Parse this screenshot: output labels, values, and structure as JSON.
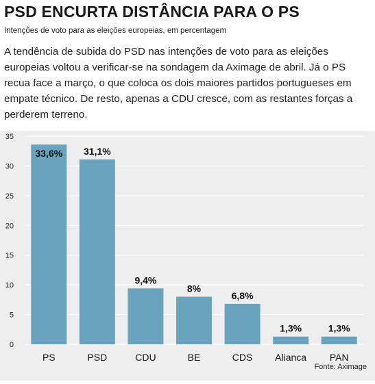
{
  "header": {
    "title": "PSD ENCURTA DISTÂNCIA PARA O PS",
    "subtitle": "Intenções de voto para as eleições europeias, em percentagem"
  },
  "intro_text": "A tendência de subida do PSD nas intenções de voto para as eleições europeias voltou a verificar-se na sondagem da Aximage de abril. Já o PS recua face a março, o que coloca os dois maiores partidos portugueses em empate técnico. De resto, apenas a CDU cresce, com as restantes forças a perderem terreno.",
  "source": "Fonte: Aximage",
  "colors": {
    "bar": "#6aa3bd",
    "background": "#eeeeee",
    "grid": "#ffffff"
  },
  "chart_data": {
    "type": "bar",
    "categories": [
      "PS",
      "PSD",
      "CDU",
      "BE",
      "CDS",
      "Alianca",
      "PAN"
    ],
    "values": [
      33.6,
      31.1,
      9.4,
      8,
      6.8,
      1.3,
      1.3
    ],
    "data_labels": [
      "33,6%",
      "31,1%",
      "9,4%",
      "8%",
      "6,8%",
      "1,3%",
      "1,3%"
    ],
    "yticks": [
      "0",
      "5",
      "10",
      "15",
      "20",
      "25",
      "30",
      "35"
    ],
    "ylim": [
      0,
      35
    ],
    "xlabel": "",
    "ylabel": "",
    "grid": true,
    "legend": "none"
  }
}
